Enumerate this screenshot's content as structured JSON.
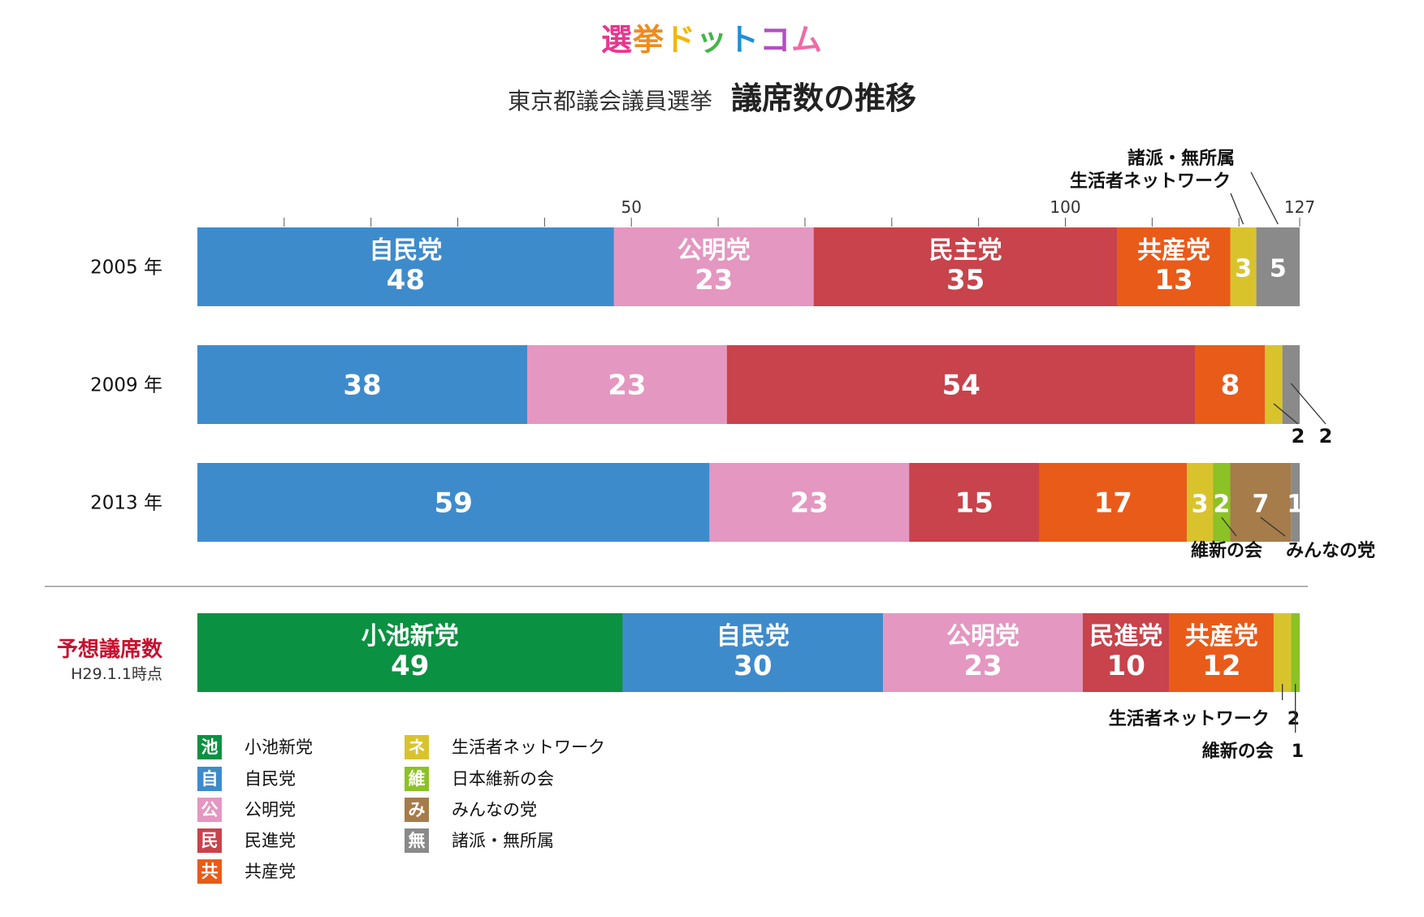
{
  "logo": {
    "chars": [
      {
        "char": "選",
        "color": "#e8368f"
      },
      {
        "char": "挙",
        "color": "#f08c1e"
      },
      {
        "char": "ド",
        "color": "#f2b705"
      },
      {
        "char": "ッ",
        "color": "#43b649"
      },
      {
        "char": "ト",
        "color": "#1f8ed6"
      },
      {
        "char": "コ",
        "color": "#b34ec4"
      },
      {
        "char": "ム",
        "color": "#f06aa5"
      }
    ]
  },
  "title": {
    "sub": "東京都議会議員選挙",
    "main": "議席数の推移"
  },
  "party_colors": {
    "ike": "#0b9142",
    "ji": "#3e8bcc",
    "ko": "#e497c0",
    "min": "#c8434b",
    "kyo": "#e95b19",
    "net": "#d9c32d",
    "ishin": "#8cc225",
    "minna": "#a57c4a",
    "mu": "#8a8a8a"
  },
  "chart_data": {
    "type": "bar",
    "orientation": "horizontal",
    "stacked": true,
    "xlim": [
      0,
      127
    ],
    "axis_ticks": [
      "50",
      "100",
      "127"
    ],
    "axis_tick_values": [
      50,
      100,
      127
    ],
    "minor_tick_step": 10,
    "divider_label": {
      "main": "予想議席数",
      "sub": "H29.1.1時点"
    },
    "rows": [
      {
        "label": "2005 年",
        "segments": [
          {
            "party": "ji",
            "value": 48,
            "name": "自民党",
            "display": "48"
          },
          {
            "party": "ko",
            "value": 23,
            "name": "公明党",
            "display": "23"
          },
          {
            "party": "min",
            "value": 35,
            "name": "民主党",
            "display": "35"
          },
          {
            "party": "kyo",
            "value": 13,
            "name": "共産党",
            "display": "13"
          },
          {
            "party": "net",
            "value": 3,
            "name": "",
            "display": "3"
          },
          {
            "party": "mu",
            "value": 5,
            "name": "",
            "display": "5"
          }
        ]
      },
      {
        "label": "2009 年",
        "segments": [
          {
            "party": "ji",
            "value": 38,
            "name": "",
            "display": "38"
          },
          {
            "party": "ko",
            "value": 23,
            "name": "",
            "display": "23"
          },
          {
            "party": "min",
            "value": 54,
            "name": "",
            "display": "54"
          },
          {
            "party": "kyo",
            "value": 8,
            "name": "",
            "display": "8"
          },
          {
            "party": "net",
            "value": 2,
            "name": "",
            "display": ""
          },
          {
            "party": "mu",
            "value": 2,
            "name": "",
            "display": ""
          }
        ]
      },
      {
        "label": "2013 年",
        "segments": [
          {
            "party": "ji",
            "value": 59,
            "name": "",
            "display": "59"
          },
          {
            "party": "ko",
            "value": 23,
            "name": "",
            "display": "23"
          },
          {
            "party": "min",
            "value": 15,
            "name": "",
            "display": "15"
          },
          {
            "party": "kyo",
            "value": 17,
            "name": "",
            "display": "17"
          },
          {
            "party": "net",
            "value": 3,
            "name": "",
            "display": "3"
          },
          {
            "party": "ishin",
            "value": 2,
            "name": "",
            "display": "2"
          },
          {
            "party": "minna",
            "value": 7,
            "name": "",
            "display": "7"
          },
          {
            "party": "mu",
            "value": 1,
            "name": "",
            "display": "1"
          }
        ]
      },
      {
        "label": "",
        "forecast": true,
        "segments": [
          {
            "party": "ike",
            "value": 49,
            "name": "小池新党",
            "display": "49"
          },
          {
            "party": "ji",
            "value": 30,
            "name": "自民党",
            "display": "30"
          },
          {
            "party": "ko",
            "value": 23,
            "name": "公明党",
            "display": "23"
          },
          {
            "party": "min",
            "value": 10,
            "name": "民進党",
            "display": "10"
          },
          {
            "party": "kyo",
            "value": 12,
            "name": "共産党",
            "display": "12"
          },
          {
            "party": "net",
            "value": 2,
            "name": "",
            "display": ""
          },
          {
            "party": "ishin",
            "value": 1,
            "name": "",
            "display": ""
          }
        ]
      }
    ],
    "callouts": [
      {
        "row": 0,
        "segment": 5,
        "text": "諸派・無所属"
      },
      {
        "row": 0,
        "segment": 4,
        "text": "生活者ネットワーク"
      },
      {
        "row": 1,
        "segment": 4,
        "text": "2"
      },
      {
        "row": 1,
        "segment": 5,
        "text": "2"
      },
      {
        "row": 2,
        "segment": 5,
        "text": "維新の会"
      },
      {
        "row": 2,
        "segment": 6,
        "text": "みんなの党"
      },
      {
        "row": 3,
        "segment": 5,
        "text": "生活者ネットワーク　2"
      },
      {
        "row": 3,
        "segment": 6,
        "text": "維新の会　1"
      }
    ]
  },
  "legend": [
    {
      "party": "ike",
      "abbr": "池",
      "label": "小池新党"
    },
    {
      "party": "ji",
      "abbr": "自",
      "label": "自民党"
    },
    {
      "party": "ko",
      "abbr": "公",
      "label": "公明党"
    },
    {
      "party": "min",
      "abbr": "民",
      "label": "民進党"
    },
    {
      "party": "kyo",
      "abbr": "共",
      "label": "共産党"
    },
    {
      "party": "net",
      "abbr": "ネ",
      "label": "生活者ネットワーク"
    },
    {
      "party": "ishin",
      "abbr": "維",
      "label": "日本維新の会"
    },
    {
      "party": "minna",
      "abbr": "み",
      "label": "みんなの党"
    },
    {
      "party": "mu",
      "abbr": "無",
      "label": "諸派・無所属"
    }
  ]
}
